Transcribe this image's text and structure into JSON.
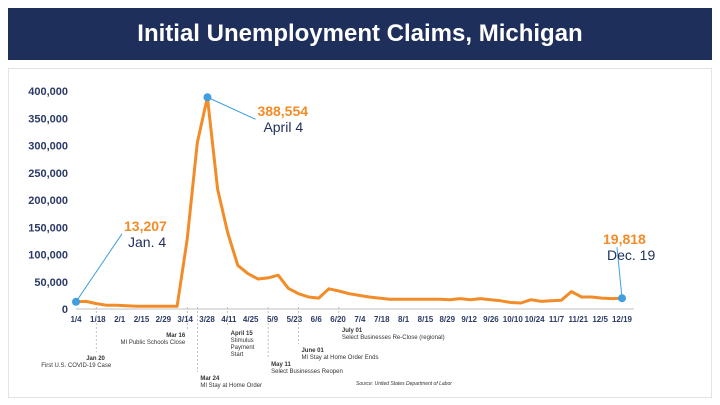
{
  "header": {
    "title": "Initial Unemployment Claims, Michigan"
  },
  "colors": {
    "banner": "#1f2f5c",
    "line": "#f28c28",
    "marker": "#3f9fe0",
    "label_dark": "#1f2f5c",
    "axis_text": "#2b3a67"
  },
  "chart_data": {
    "type": "line",
    "ylim": [
      0,
      400000
    ],
    "y_ticks": [
      0,
      50000,
      100000,
      150000,
      200000,
      250000,
      300000,
      350000,
      400000
    ],
    "y_tick_labels": [
      "0",
      "50,000",
      "100,000",
      "150,000",
      "200,000",
      "250,000",
      "300,000",
      "350,000",
      "400,000"
    ],
    "x_tick_labels": [
      "1/4",
      "1/18",
      "2/1",
      "2/15",
      "2/29",
      "3/14",
      "3/28",
      "4/11",
      "4/25",
      "5/9",
      "5/23",
      "6/6",
      "6/20",
      "7/4",
      "7/18",
      "8/1",
      "8/15",
      "8/29",
      "9/12",
      "9/26",
      "10/10",
      "10/24",
      "11/7",
      "11/21",
      "12/5",
      "12/19"
    ],
    "series": [
      {
        "values": [
          13207,
          14000,
          10000,
          7000,
          7000,
          6000,
          5000,
          5000,
          5000,
          5000,
          5000,
          128000,
          305000,
          388554,
          220000,
          140000,
          80000,
          65000,
          55000,
          57000,
          62000,
          38000,
          28000,
          22000,
          20000,
          37000,
          33000,
          28000,
          25000,
          22000,
          20000,
          18000,
          18000,
          18000,
          18000,
          18000,
          18000,
          17000,
          19000,
          17000,
          19000,
          17000,
          15000,
          12000,
          11000,
          17000,
          14000,
          15000,
          16000,
          32000,
          22000,
          22000,
          20000,
          19000,
          19818
        ]
      }
    ],
    "callouts": [
      {
        "value": "13,207",
        "label": "Jan. 4",
        "index": 0
      },
      {
        "value": "388,554",
        "label": "April 4",
        "index": 13
      },
      {
        "value": "19,818",
        "label": "Dec. 19",
        "index": 54
      }
    ],
    "events": [
      {
        "date": "Jan 20",
        "text": "First U.S. COVID-19 Case",
        "index": 2
      },
      {
        "date": "Mar 16",
        "text": "MI Public Schools Close",
        "index": 11
      },
      {
        "date": "Mar 24",
        "text": "MI Stay at Home Order",
        "index": 12
      },
      {
        "date": "April 15",
        "text": "Stimulus Payment Start",
        "text_lines": [
          "Stimulus",
          "Payment",
          "Start"
        ],
        "index": 15
      },
      {
        "date": "May 11",
        "text": "Select Businesses Reopen",
        "index": 19
      },
      {
        "date": "June 01",
        "text": "MI Stay at Home Order Ends",
        "index": 22
      },
      {
        "date": "July 01",
        "text": "Select Businesses Re-Close (regional)",
        "index": 26
      }
    ],
    "source": "Source: United States Department of Labor"
  }
}
